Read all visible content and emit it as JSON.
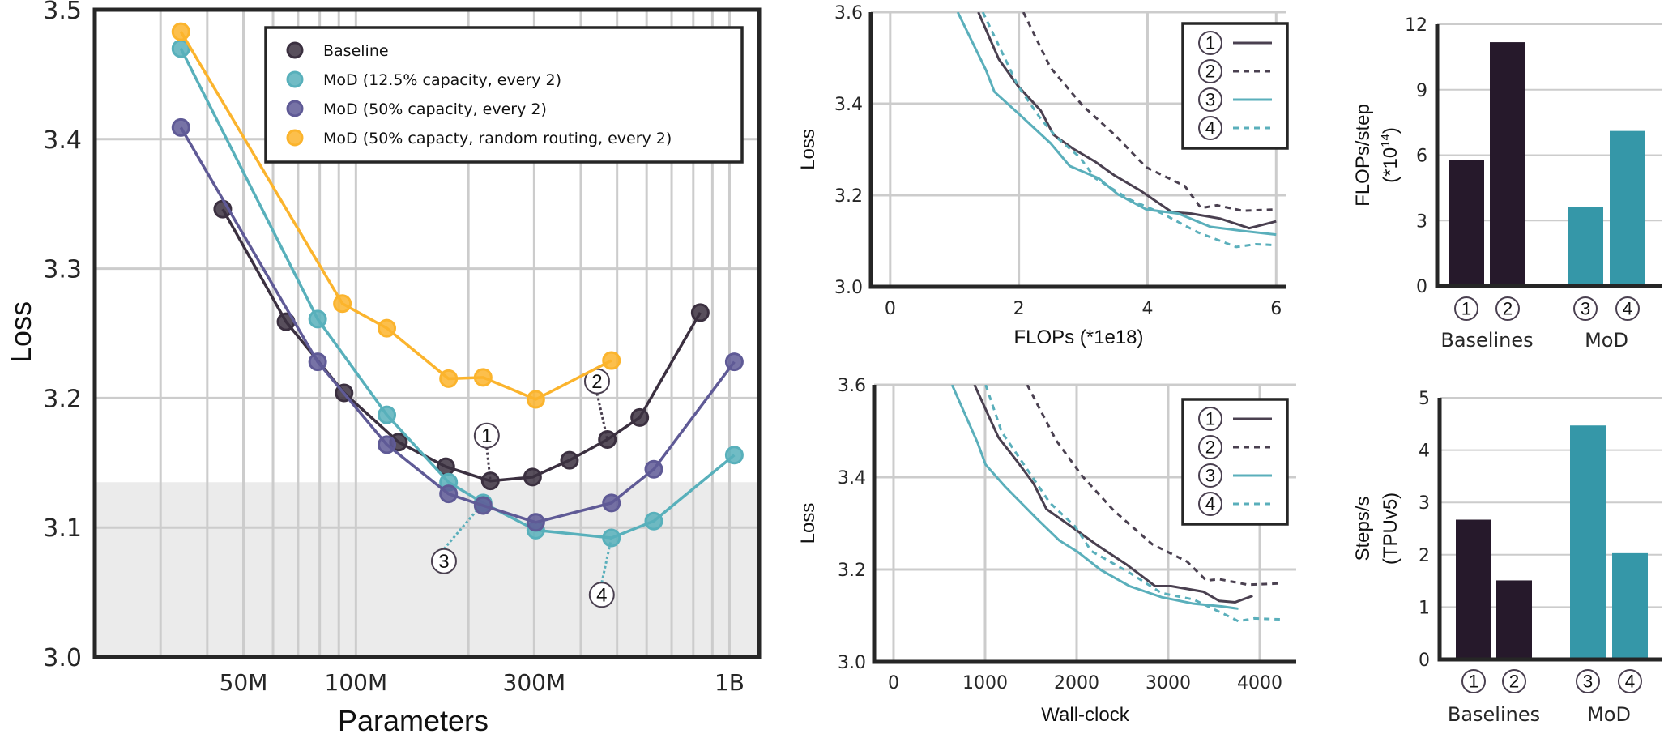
{
  "colors": {
    "baseline": "#3b3040",
    "mod_12_5": "#58b0bb",
    "mod_50": "#5f5a96",
    "mod_random": "#fbb42d",
    "curve_dark": "#4a4050",
    "curve_teal": "#5aafbb",
    "bar_dark": "#26192b",
    "bar_teal": "#3597a8",
    "shade": "#ebebeb",
    "grid": "#cccccc",
    "axis": "#262626"
  },
  "chart_data": [
    {
      "type": "line",
      "xlabel": "Parameters",
      "ylabel": "Loss",
      "xscale": "log",
      "xlim": [
        20000000,
        1200000000
      ],
      "ylim": [
        3.0,
        3.5
      ],
      "grid": true,
      "shaded_below_loss": 3.135,
      "legend_placement": "top-right",
      "xticks": [
        {
          "v": 50000000,
          "label": "50M"
        },
        {
          "v": 100000000,
          "label": "100M"
        },
        {
          "v": 300000000,
          "label": "300M"
        },
        {
          "v": 1000000000,
          "label": "1B"
        }
      ],
      "yticks": [
        {
          "v": 3.0,
          "label": "3.0"
        },
        {
          "v": 3.1,
          "label": "3.1"
        },
        {
          "v": 3.2,
          "label": "3.2"
        },
        {
          "v": 3.3,
          "label": "3.3"
        },
        {
          "v": 3.4,
          "label": "3.4"
        },
        {
          "v": 3.5,
          "label": "3.5"
        }
      ],
      "series": [
        {
          "name": "Baseline",
          "color_key": "baseline",
          "x": [
            44000000,
            65000000,
            93000000,
            130000000,
            174000000,
            229000000,
            297000000,
            373000000,
            471000000,
            575000000,
            835000000
          ],
          "y": [
            3.346,
            3.259,
            3.204,
            3.166,
            3.147,
            3.136,
            3.139,
            3.152,
            3.168,
            3.185,
            3.266
          ]
        },
        {
          "name": "MoD (12.5% capacity, every 2)",
          "color_key": "mod_12_5",
          "x": [
            34000000,
            79000000,
            121000000,
            177000000,
            219000000,
            303000000,
            483000000,
            627000000,
            1030000000
          ],
          "y": [
            3.47,
            3.261,
            3.187,
            3.135,
            3.119,
            3.098,
            3.092,
            3.105,
            3.156
          ]
        },
        {
          "name": "MoD (50% capacity, every 2)",
          "color_key": "mod_50",
          "x": [
            34000000,
            79000000,
            121000000,
            177000000,
            219000000,
            303000000,
            483000000,
            627000000,
            1030000000
          ],
          "y": [
            3.409,
            3.228,
            3.164,
            3.126,
            3.117,
            3.104,
            3.119,
            3.145,
            3.228
          ]
        },
        {
          "name": "MoD (50% capacty, random routing, every 2)",
          "color_key": "mod_random",
          "x": [
            34000000,
            92000000,
            121000000,
            177000000,
            219000000,
            303000000,
            483000000
          ],
          "y": [
            3.483,
            3.273,
            3.254,
            3.215,
            3.216,
            3.199,
            3.229
          ]
        }
      ],
      "annotations": [
        {
          "label": "1",
          "x": 224000000,
          "y": 3.171,
          "target_x": 229000000,
          "target_y": 3.136,
          "color_key": "curve_dark"
        },
        {
          "label": "2",
          "x": 442000000,
          "y": 3.213,
          "target_x": 471000000,
          "target_y": 3.168,
          "color_key": "curve_dark"
        },
        {
          "label": "3",
          "x": 172000000,
          "y": 3.074,
          "target_x": 219000000,
          "target_y": 3.119,
          "color_key": "curve_teal"
        },
        {
          "label": "4",
          "x": 455000000,
          "y": 3.048,
          "target_x": 483000000,
          "target_y": 3.092,
          "color_key": "curve_teal"
        }
      ]
    },
    {
      "type": "line",
      "xlabel": "FLOPs (*1e18)",
      "ylabel": "Loss",
      "xlim": [
        -0.3,
        6.16
      ],
      "ylim": [
        3.0,
        3.6
      ],
      "grid": true,
      "legend_placement": "top-right",
      "xticks": [
        {
          "v": 0,
          "label": "0"
        },
        {
          "v": 2,
          "label": "2"
        },
        {
          "v": 4,
          "label": "4"
        },
        {
          "v": 6,
          "label": "6"
        }
      ],
      "yticks": [
        {
          "v": 3.0,
          "label": "3.0"
        },
        {
          "v": 3.2,
          "label": "3.2"
        },
        {
          "v": 3.4,
          "label": "3.4"
        },
        {
          "v": 3.6,
          "label": "3.6"
        }
      ],
      "series": [
        {
          "name": "1",
          "color_key": "curve_dark",
          "dashed": false,
          "x": [
            1.37,
            1.69,
            1.99,
            2.34,
            2.54,
            2.84,
            3.19,
            3.49,
            3.88,
            4.38,
            4.68,
            5.13,
            5.58,
            6.0
          ],
          "y": [
            3.6,
            3.497,
            3.438,
            3.385,
            3.332,
            3.302,
            3.273,
            3.243,
            3.211,
            3.163,
            3.16,
            3.149,
            3.128,
            3.143
          ]
        },
        {
          "name": "2",
          "color_key": "curve_dark",
          "dashed": true,
          "x": [
            2.07,
            2.49,
            2.99,
            3.49,
            3.98,
            4.58,
            4.83,
            5.08,
            5.48,
            6.0
          ],
          "y": [
            3.6,
            3.479,
            3.396,
            3.332,
            3.261,
            3.22,
            3.172,
            3.178,
            3.166,
            3.169
          ]
        },
        {
          "name": "3",
          "color_key": "curve_teal",
          "dashed": false,
          "x": [
            1.05,
            1.49,
            1.62,
            1.99,
            2.49,
            2.79,
            3.24,
            3.54,
            3.98,
            4.48,
            4.98,
            5.48,
            6.0
          ],
          "y": [
            3.6,
            3.473,
            3.426,
            3.379,
            3.314,
            3.264,
            3.237,
            3.202,
            3.169,
            3.16,
            3.131,
            3.122,
            3.114
          ]
        },
        {
          "name": "4",
          "color_key": "curve_teal",
          "dashed": true,
          "x": [
            1.44,
            1.99,
            2.34,
            2.59,
            2.94,
            3.19,
            3.73,
            4.23,
            4.78,
            5.38,
            5.68,
            6.0
          ],
          "y": [
            3.6,
            3.438,
            3.367,
            3.326,
            3.284,
            3.237,
            3.19,
            3.16,
            3.119,
            3.087,
            3.093,
            3.091
          ]
        }
      ]
    },
    {
      "type": "line",
      "xlabel": "Wall-clock",
      "ylabel": "Loss",
      "xlim": [
        -212,
        4398
      ],
      "ylim": [
        3.0,
        3.6
      ],
      "grid": true,
      "legend_placement": "top-right",
      "xticks": [
        {
          "v": 0,
          "label": "0"
        },
        {
          "v": 1000,
          "label": "1000"
        },
        {
          "v": 2000,
          "label": "2000"
        },
        {
          "v": 3000,
          "label": "3000"
        },
        {
          "v": 4000,
          "label": "4000"
        }
      ],
      "yticks": [
        {
          "v": 3.0,
          "label": "3.0"
        },
        {
          "v": 3.2,
          "label": "3.2"
        },
        {
          "v": 3.4,
          "label": "3.4"
        },
        {
          "v": 3.6,
          "label": "3.6"
        }
      ],
      "series": [
        {
          "name": "1",
          "color_key": "curve_dark",
          "dashed": false,
          "x": [
            884,
            1146,
            1355,
            1530,
            1670,
            1984,
            2229,
            2543,
            2858,
            3032,
            3382,
            3557,
            3731,
            3923
          ],
          "y": [
            3.6,
            3.486,
            3.433,
            3.386,
            3.331,
            3.287,
            3.252,
            3.211,
            3.164,
            3.164,
            3.152,
            3.132,
            3.129,
            3.143
          ]
        },
        {
          "name": "2",
          "color_key": "curve_dark",
          "dashed": true,
          "x": [
            1460,
            1775,
            2054,
            2404,
            2823,
            3207,
            3417,
            3557,
            3871,
            4238
          ],
          "y": [
            3.6,
            3.48,
            3.404,
            3.328,
            3.255,
            3.217,
            3.176,
            3.179,
            3.167,
            3.17
          ]
        },
        {
          "name": "3",
          "color_key": "curve_teal",
          "dashed": false,
          "x": [
            639,
            919,
            1006,
            1216,
            1565,
            1810,
            2019,
            2264,
            2578,
            2928,
            3277,
            3591,
            3766
          ],
          "y": [
            3.6,
            3.474,
            3.427,
            3.38,
            3.31,
            3.263,
            3.237,
            3.199,
            3.164,
            3.14,
            3.126,
            3.12,
            3.115
          ]
        },
        {
          "name": "4",
          "color_key": "curve_teal",
          "dashed": true,
          "x": [
            1006,
            1181,
            1425,
            1705,
            1984,
            2159,
            2578,
            2928,
            3277,
            3626,
            3766,
            3941,
            4220
          ],
          "y": [
            3.6,
            3.498,
            3.427,
            3.345,
            3.293,
            3.24,
            3.193,
            3.149,
            3.135,
            3.102,
            3.088,
            3.094,
            3.092
          ]
        }
      ]
    },
    {
      "type": "bar",
      "ylabel": "FLOPs/step",
      "ylabel2": "(*10",
      "ylabel2_sup": "14",
      "ylabel2_end": ")",
      "ylim": [
        0,
        12
      ],
      "grid": true,
      "yticks": [
        {
          "v": 0,
          "label": "0"
        },
        {
          "v": 3,
          "label": "3"
        },
        {
          "v": 6,
          "label": "6"
        },
        {
          "v": 9,
          "label": "9"
        },
        {
          "v": 12,
          "label": "12"
        }
      ],
      "categories": [
        "1",
        "2",
        "3",
        "4"
      ],
      "values": [
        5.77,
        11.18,
        3.61,
        7.11
      ],
      "bar_color_keys": [
        "bar_dark",
        "bar_dark",
        "bar_teal",
        "bar_teal"
      ],
      "groups": [
        "Baselines",
        "MoD"
      ]
    },
    {
      "type": "bar",
      "ylabel": "Steps/s",
      "ylabel2": "(TPUv5)",
      "ylim": [
        0,
        5
      ],
      "grid": true,
      "yticks": [
        {
          "v": 0,
          "label": "0"
        },
        {
          "v": 1,
          "label": "1"
        },
        {
          "v": 2,
          "label": "2"
        },
        {
          "v": 3,
          "label": "3"
        },
        {
          "v": 4,
          "label": "4"
        },
        {
          "v": 5,
          "label": "5"
        }
      ],
      "categories": [
        "1",
        "2",
        "3",
        "4"
      ],
      "values": [
        2.67,
        1.51,
        4.47,
        2.03
      ],
      "bar_color_keys": [
        "bar_dark",
        "bar_dark",
        "bar_teal",
        "bar_teal"
      ],
      "groups": [
        "Baselines",
        "MoD"
      ]
    }
  ]
}
